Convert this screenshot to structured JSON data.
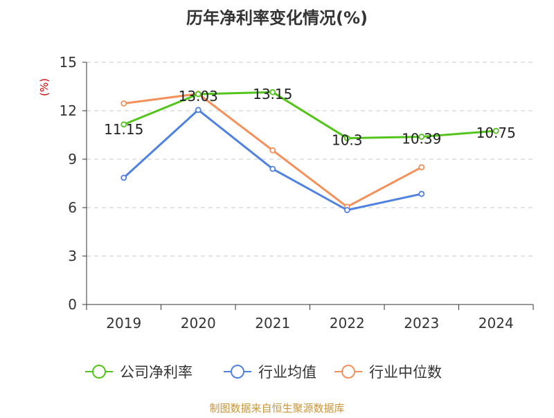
{
  "chart_data": {
    "type": "line",
    "title": "历年净利率变化情况(%)",
    "ylabel": "(%)",
    "xlabel": "",
    "categories": [
      "2019",
      "2020",
      "2021",
      "2022",
      "2023",
      "2024"
    ],
    "ylim": [
      0,
      15
    ],
    "yticks": [
      0,
      3,
      6,
      9,
      12,
      15
    ],
    "grid": "horizontal-dashed",
    "legend_position": "bottom",
    "series": [
      {
        "name": "公司净利率",
        "color": "#52c41a",
        "values": [
          11.15,
          13.03,
          13.15,
          10.3,
          10.39,
          10.75
        ],
        "labels": [
          "11.15",
          "13.03",
          "13.15",
          "10.3",
          "10.39",
          "10.75"
        ]
      },
      {
        "name": "行业均值",
        "color": "#4f81e0",
        "values": [
          7.85,
          12.05,
          8.4,
          5.85,
          6.85,
          null
        ]
      },
      {
        "name": "行业中位数",
        "color": "#f4905a",
        "values": [
          12.45,
          13.05,
          9.55,
          6.05,
          8.5,
          null
        ]
      }
    ]
  },
  "source": "制图数据来自恒生聚源数据库"
}
